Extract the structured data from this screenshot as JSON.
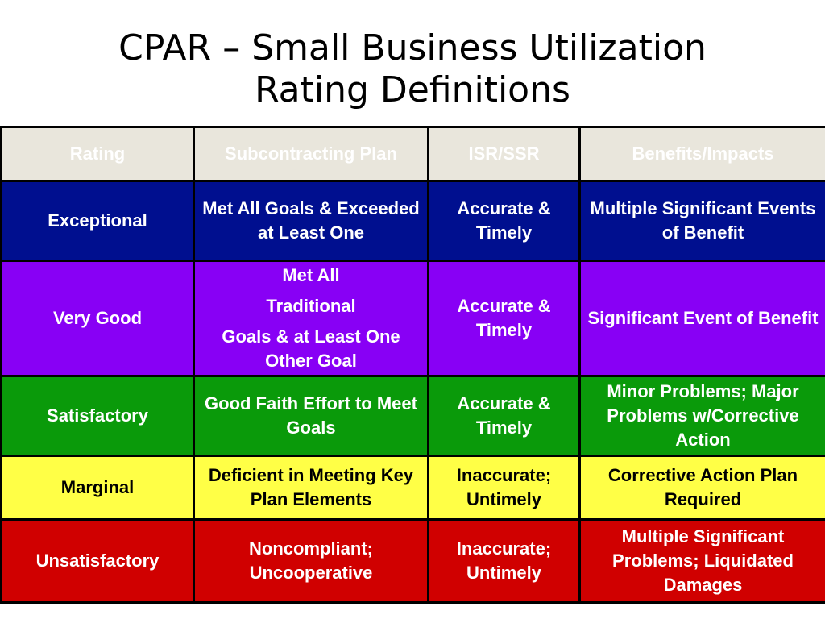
{
  "title": {
    "line1": "CPAR – Small Business Utilization",
    "line2": "Rating Definitions"
  },
  "table": {
    "headers": [
      "Rating",
      "Subcontracting Plan",
      "ISR/SSR",
      "Benefits/Impacts"
    ],
    "rows": {
      "exceptional": {
        "rating": "Exceptional",
        "plan": "Met All Goals & Exceeded at Least One",
        "isr": "Accurate & Timely",
        "benefits": "Multiple Significant Events of Benefit"
      },
      "very_good": {
        "rating": "Very Good",
        "plan_line1": "Met All",
        "plan_line2": "Traditional",
        "plan_line3": "Goals & at Least One Other Goal",
        "isr": "Accurate & Timely",
        "benefits": "Significant Event of Benefit"
      },
      "satisfactory": {
        "rating": "Satisfactory",
        "plan": "Good Faith Effort to Meet Goals",
        "isr": "Accurate & Timely",
        "benefits": "Minor Problems; Major Problems w/Corrective Action"
      },
      "marginal": {
        "rating": "Marginal",
        "plan": "Deficient in Meeting Key Plan Elements",
        "isr": "Inaccurate; Untimely",
        "benefits": "Corrective Action Plan Required"
      },
      "unsatisfactory": {
        "rating": "Unsatisfactory",
        "plan": "Noncompliant; Uncooperative",
        "isr": "Inaccurate; Untimely",
        "benefits": "Multiple Significant Problems; Liquidated Damages"
      }
    }
  },
  "colors": {
    "header_bg": "#e9e6dc",
    "exceptional": "#000f8f",
    "very_good": "#8800f5",
    "satisfactory": "#0a9a0a",
    "marginal": "#ffff46",
    "unsatisfactory": "#d00000"
  }
}
